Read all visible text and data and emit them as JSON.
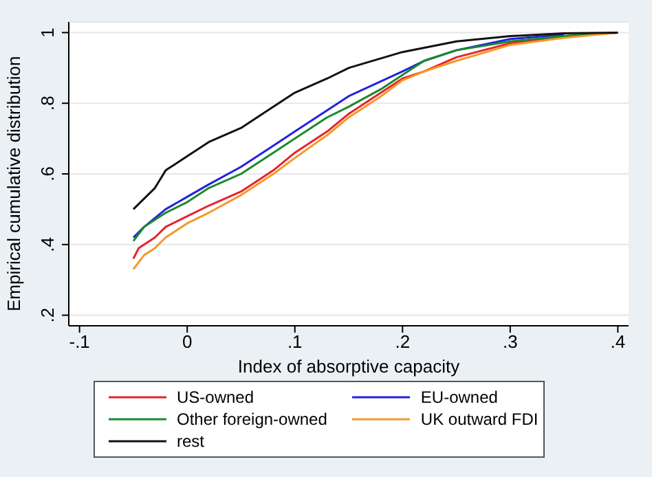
{
  "chart_data": {
    "type": "line",
    "xlabel": "Index of absorptive capacity",
    "ylabel": "Empirical cumulative distribution",
    "xlim": [
      -0.11,
      0.41
    ],
    "xticks": [
      {
        "value": -0.1,
        "label": "-.1"
      },
      0,
      {
        "value": 0.1,
        "label": ".1"
      },
      {
        "value": 0.2,
        "label": ".2"
      },
      {
        "value": 0.3,
        "label": ".3"
      },
      {
        "value": 0.4,
        "label": ".4"
      }
    ],
    "ylim": [
      0.17,
      1.03
    ],
    "yticks": [
      {
        "value": 0.2,
        "label": ".2"
      },
      {
        "value": 0.4,
        "label": ".4"
      },
      {
        "value": 0.6,
        "label": ".6"
      },
      {
        "value": 0.8,
        "label": ".8"
      },
      1
    ],
    "grid": "y",
    "legend": "bottom",
    "marker": "none",
    "line_style": "solid",
    "series": [
      {
        "name": "US-owned",
        "color": "#e8222a",
        "x": [
          -0.05,
          -0.045,
          -0.03,
          -0.02,
          0,
          0.02,
          0.05,
          0.08,
          0.1,
          0.13,
          0.15,
          0.18,
          0.2,
          0.22,
          0.25,
          0.3,
          0.35,
          0.4
        ],
        "values": [
          0.36,
          0.39,
          0.42,
          0.45,
          0.48,
          0.51,
          0.55,
          0.61,
          0.66,
          0.72,
          0.77,
          0.83,
          0.87,
          0.89,
          0.93,
          0.97,
          0.99,
          1
        ]
      },
      {
        "name": "EU-owned",
        "color": "#2222dd",
        "x": [
          -0.05,
          -0.04,
          -0.02,
          0,
          0.02,
          0.05,
          0.08,
          0.1,
          0.13,
          0.15,
          0.2,
          0.22,
          0.25,
          0.3,
          0.35
        ],
        "values": [
          0.42,
          0.45,
          0.5,
          0.535,
          0.57,
          0.62,
          0.68,
          0.72,
          0.78,
          0.82,
          0.89,
          0.92,
          0.95,
          0.982,
          0.994
        ]
      },
      {
        "name": "Other foreign-owned",
        "color": "#1a8a2a",
        "x": [
          -0.05,
          -0.04,
          -0.02,
          0,
          0.02,
          0.05,
          0.08,
          0.1,
          0.13,
          0.15,
          0.18,
          0.2,
          0.22,
          0.25,
          0.3,
          0.35,
          0.4
        ],
        "values": [
          0.41,
          0.45,
          0.49,
          0.52,
          0.56,
          0.6,
          0.66,
          0.7,
          0.76,
          0.79,
          0.84,
          0.88,
          0.92,
          0.95,
          0.975,
          0.99,
          1
        ]
      },
      {
        "name": "UK outward FDI",
        "color": "#f39a2a",
        "x": [
          -0.05,
          -0.04,
          -0.03,
          -0.02,
          0,
          0.02,
          0.05,
          0.08,
          0.1,
          0.13,
          0.15,
          0.18,
          0.2,
          0.22,
          0.25,
          0.3,
          0.35,
          0.4
        ],
        "values": [
          0.33,
          0.37,
          0.39,
          0.42,
          0.46,
          0.49,
          0.54,
          0.6,
          0.645,
          0.71,
          0.76,
          0.82,
          0.865,
          0.89,
          0.92,
          0.965,
          0.985,
          1
        ]
      },
      {
        "name": "rest",
        "color": "#111111",
        "x": [
          -0.05,
          -0.03,
          -0.02,
          0,
          0.02,
          0.05,
          0.08,
          0.1,
          0.13,
          0.15,
          0.2,
          0.25,
          0.3,
          0.35,
          0.4
        ],
        "values": [
          0.5,
          0.56,
          0.61,
          0.65,
          0.69,
          0.73,
          0.79,
          0.83,
          0.87,
          0.9,
          0.945,
          0.975,
          0.99,
          0.998,
          1
        ]
      }
    ]
  }
}
